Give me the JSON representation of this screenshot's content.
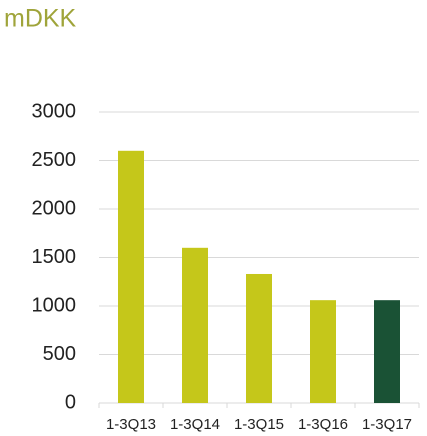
{
  "chart_data": {
    "type": "bar",
    "title": "mDKK",
    "categories": [
      "1-3Q13",
      "1-3Q14",
      "1-3Q15",
      "1-3Q16",
      "1-3Q17"
    ],
    "values": [
      2600,
      1600,
      1330,
      1060,
      1060
    ],
    "colors": [
      "#c5c71a",
      "#c5c71a",
      "#c5c71a",
      "#c5c71a",
      "#1a5235"
    ],
    "ylim": [
      0,
      3000
    ],
    "yticks": [
      0,
      500,
      1000,
      1500,
      2000,
      2500,
      3000
    ],
    "grid": true
  }
}
